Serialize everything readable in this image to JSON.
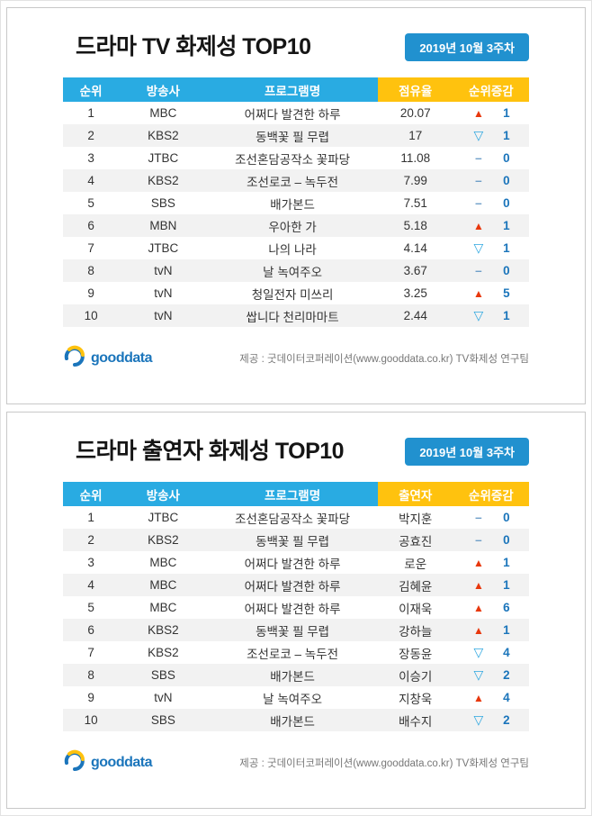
{
  "chart_data": [
    {
      "type": "table",
      "title": "드라마 TV 화제성 TOP10",
      "badge": "2019년 10월 3주차",
      "columns": [
        "순위",
        "방송사",
        "프로그램명",
        "점유율",
        "순위증감"
      ],
      "rows": [
        {
          "rank": "1",
          "broadcaster": "MBC",
          "program": "어쩌다 발견한 하루",
          "value": "20.07",
          "change_dir": "up",
          "change_value": "1"
        },
        {
          "rank": "2",
          "broadcaster": "KBS2",
          "program": "동백꽃 필 무렵",
          "value": "17",
          "change_dir": "down",
          "change_value": "1"
        },
        {
          "rank": "3",
          "broadcaster": "JTBC",
          "program": "조선혼담공작소 꽃파당",
          "value": "11.08",
          "change_dir": "flat",
          "change_value": "0"
        },
        {
          "rank": "4",
          "broadcaster": "KBS2",
          "program": "조선로코 – 녹두전",
          "value": "7.99",
          "change_dir": "flat",
          "change_value": "0"
        },
        {
          "rank": "5",
          "broadcaster": "SBS",
          "program": "배가본드",
          "value": "7.51",
          "change_dir": "flat",
          "change_value": "0"
        },
        {
          "rank": "6",
          "broadcaster": "MBN",
          "program": "우아한 가",
          "value": "5.18",
          "change_dir": "up",
          "change_value": "1"
        },
        {
          "rank": "7",
          "broadcaster": "JTBC",
          "program": "나의 나라",
          "value": "4.14",
          "change_dir": "down",
          "change_value": "1"
        },
        {
          "rank": "8",
          "broadcaster": "tvN",
          "program": "날 녹여주오",
          "value": "3.67",
          "change_dir": "flat",
          "change_value": "0"
        },
        {
          "rank": "9",
          "broadcaster": "tvN",
          "program": "청일전자 미쓰리",
          "value": "3.25",
          "change_dir": "up",
          "change_value": "5"
        },
        {
          "rank": "10",
          "broadcaster": "tvN",
          "program": "쌉니다 천리마마트",
          "value": "2.44",
          "change_dir": "down",
          "change_value": "1"
        }
      ]
    },
    {
      "type": "table",
      "title": "드라마 출연자 화제성 TOP10",
      "badge": "2019년 10월 3주차",
      "columns": [
        "순위",
        "방송사",
        "프로그램명",
        "출연자",
        "순위증감"
      ],
      "rows": [
        {
          "rank": "1",
          "broadcaster": "JTBC",
          "program": "조선혼담공작소 꽃파당",
          "value": "박지훈",
          "change_dir": "flat",
          "change_value": "0"
        },
        {
          "rank": "2",
          "broadcaster": "KBS2",
          "program": "동백꽃 필 무렵",
          "value": "공효진",
          "change_dir": "flat",
          "change_value": "0"
        },
        {
          "rank": "3",
          "broadcaster": "MBC",
          "program": "어쩌다 발견한 하루",
          "value": "로운",
          "change_dir": "up",
          "change_value": "1"
        },
        {
          "rank": "4",
          "broadcaster": "MBC",
          "program": "어쩌다 발견한 하루",
          "value": "김혜윤",
          "change_dir": "up",
          "change_value": "1"
        },
        {
          "rank": "5",
          "broadcaster": "MBC",
          "program": "어쩌다 발견한 하루",
          "value": "이재욱",
          "change_dir": "up",
          "change_value": "6"
        },
        {
          "rank": "6",
          "broadcaster": "KBS2",
          "program": "동백꽃 필 무렵",
          "value": "강하늘",
          "change_dir": "up",
          "change_value": "1"
        },
        {
          "rank": "7",
          "broadcaster": "KBS2",
          "program": "조선로코 – 녹두전",
          "value": "장동윤",
          "change_dir": "down",
          "change_value": "4"
        },
        {
          "rank": "8",
          "broadcaster": "SBS",
          "program": "배가본드",
          "value": "이승기",
          "change_dir": "down",
          "change_value": "2"
        },
        {
          "rank": "9",
          "broadcaster": "tvN",
          "program": "날 녹여주오",
          "value": "지창욱",
          "change_dir": "up",
          "change_value": "4"
        },
        {
          "rank": "10",
          "broadcaster": "SBS",
          "program": "배가본드",
          "value": "배수지",
          "change_dir": "down",
          "change_value": "2"
        }
      ]
    }
  ],
  "symbols": {
    "up": "▲",
    "down": "▽",
    "flat": "–"
  },
  "footer": {
    "logo_text": "gooddata",
    "credit": "제공 : 굿데이터코퍼레이션(www.gooddata.co.kr) TV화제성 연구팀"
  },
  "colors": {
    "header_blue": "#29abe2",
    "header_yellow": "#ffc20e",
    "badge_blue": "#2191cf",
    "up_red": "#e8380d",
    "down_blue": "#2ea7e0",
    "flat_gray_blue": "#6f9fc8",
    "change_number_blue": "#1b75bb",
    "row_alt_gray": "#f2f2f2"
  }
}
